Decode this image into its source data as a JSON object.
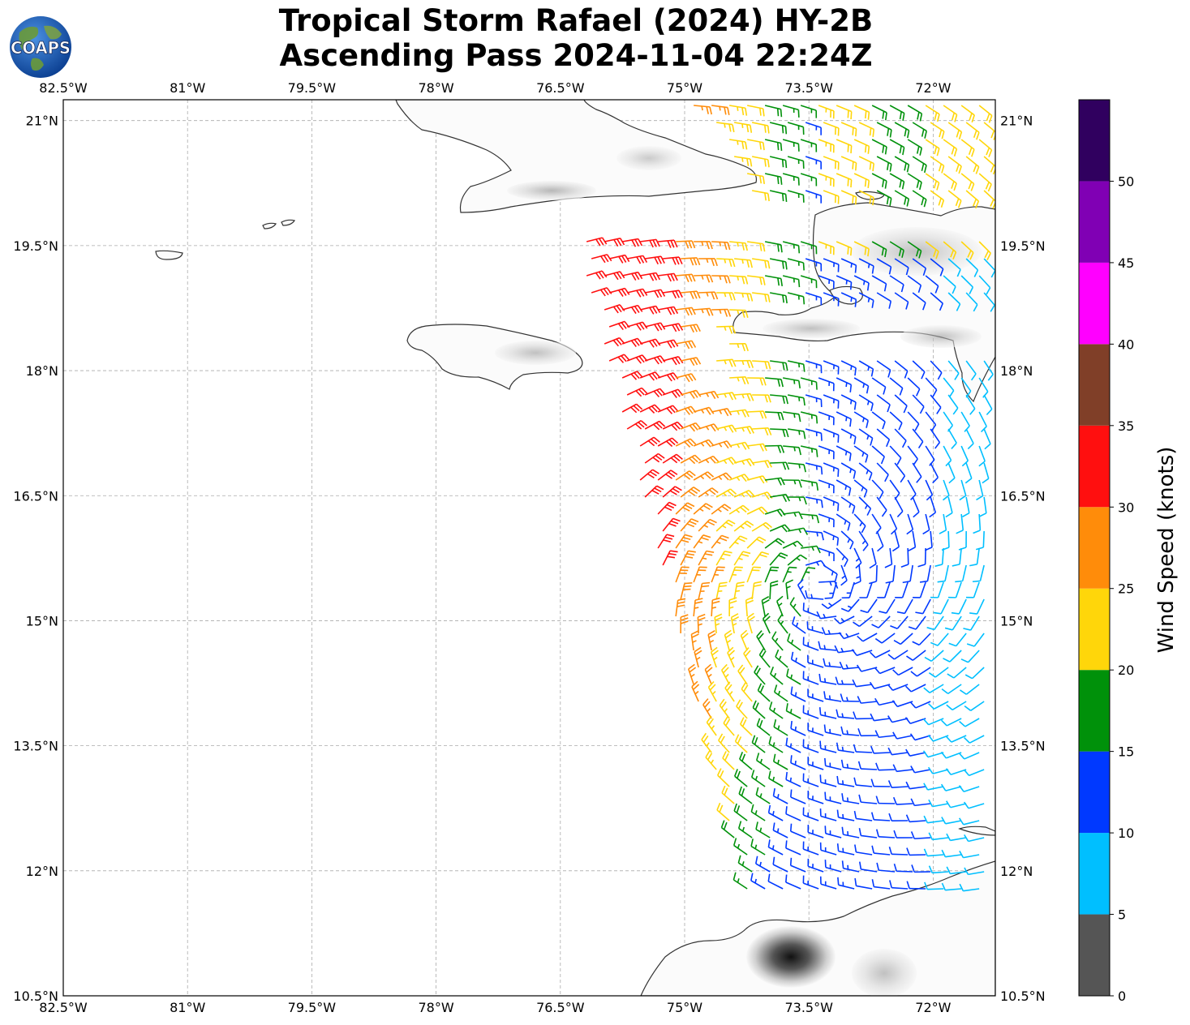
{
  "title": {
    "line1": "Tropical Storm Rafael (2024) HY-2B",
    "line2": "Ascending Pass 2024-11-04 22:24Z"
  },
  "logo": {
    "text": "COAPS"
  },
  "map": {
    "lon_labels": [
      "82.5°W",
      "81°W",
      "79.5°W",
      "78°W",
      "76.5°W",
      "75°W",
      "73.5°W",
      "72°W"
    ],
    "lat_labels": [
      "21°N",
      "19.5°N",
      "18°N",
      "16.5°N",
      "15°N",
      "13.5°N",
      "12°N",
      "10.5°N"
    ],
    "lon_range": [
      -82.5,
      -71.25
    ],
    "lat_range": [
      10.5,
      21.25
    ],
    "land_color": "#ffffff",
    "coast_color": "#333333",
    "grid": true
  },
  "colorbar": {
    "label": "Wind Speed (knots)",
    "ticks": [
      "0",
      "5",
      "10",
      "15",
      "20",
      "25",
      "30",
      "35",
      "40",
      "45",
      "50"
    ],
    "colors": [
      "#555555",
      "#00bfff",
      "#0039ff",
      "#00910a",
      "#ffd60a",
      "#ff8c0a",
      "#ff0f0f",
      "#803f28",
      "#ff00ff",
      "#8000b4",
      "#30005f"
    ],
    "range": [
      0,
      55
    ]
  }
}
